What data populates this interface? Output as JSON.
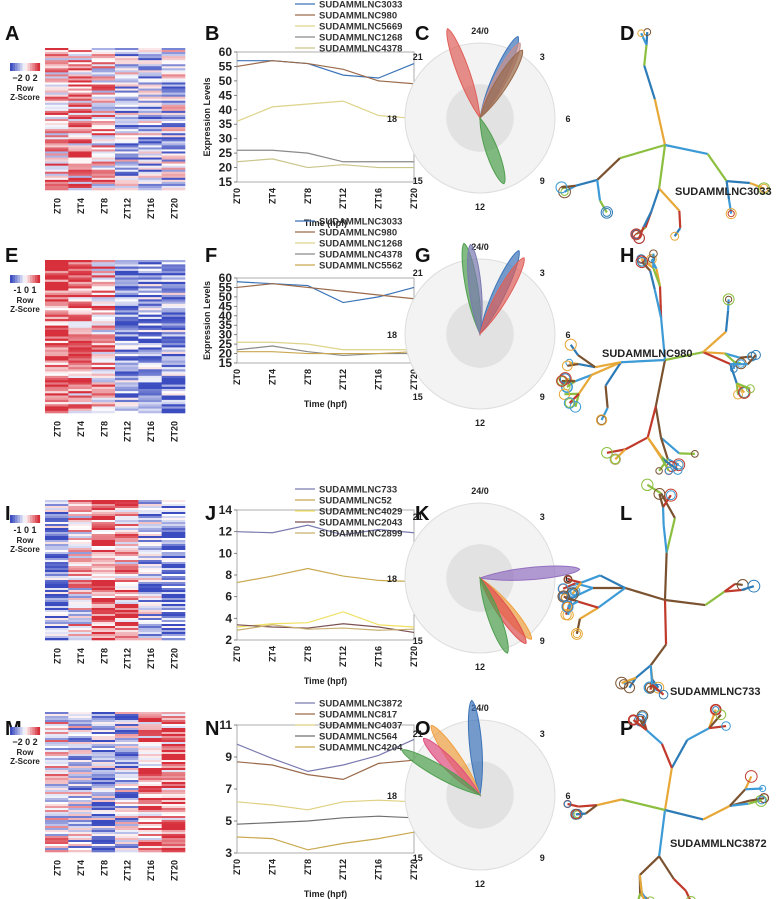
{
  "panels": [
    "A",
    "B",
    "C",
    "D",
    "E",
    "F",
    "G",
    "H",
    "I",
    "J",
    "K",
    "L",
    "M",
    "N",
    "O",
    "P"
  ],
  "heatmaps": [
    {
      "letter": "A",
      "legend": {
        "ticks": "−2 0 2",
        "line1": "Row",
        "line2": "Z-Score"
      },
      "columns": [
        "ZT0",
        "ZT4",
        "ZT8",
        "ZT12",
        "ZT16",
        "ZT20"
      ],
      "column_bias": [
        0.35,
        0.35,
        0.2,
        -0.25,
        -0.3,
        -0.2
      ],
      "seed": 11
    },
    {
      "letter": "E",
      "legend": {
        "ticks": "-1 0 1",
        "line1": "Row",
        "line2": "Z-Score"
      },
      "columns": [
        "ZT0",
        "ZT4",
        "ZT8",
        "ZT12",
        "ZT16",
        "ZT20"
      ],
      "column_bias": [
        0.75,
        0.55,
        0.3,
        -0.6,
        -0.55,
        -0.55
      ],
      "seed": 23
    },
    {
      "letter": "I",
      "legend": {
        "ticks": "-1 0 1",
        "line1": "Row",
        "line2": "Z-Score"
      },
      "columns": [
        "ZT0",
        "ZT4",
        "ZT8",
        "ZT12",
        "ZT16",
        "ZT20"
      ],
      "column_bias": [
        -0.5,
        0.1,
        0.7,
        0.45,
        -0.35,
        -0.6
      ],
      "seed": 37
    },
    {
      "letter": "M",
      "legend": {
        "ticks": "−2 0 2",
        "line1": "Row",
        "line2": "Z-Score"
      },
      "columns": [
        "ZT0",
        "ZT4",
        "ZT8",
        "ZT12",
        "ZT16",
        "ZT20"
      ],
      "column_bias": [
        0.05,
        -0.25,
        -0.45,
        -0.3,
        0.5,
        0.6
      ],
      "seed": 53
    }
  ],
  "chart_data": [
    {
      "panel": "B",
      "type": "line",
      "xlabel": "Time (hpf)",
      "ylabel": "Expression Levels",
      "categories": [
        "ZT0",
        "ZT4",
        "ZT8",
        "ZT12",
        "ZT16",
        "ZT20"
      ],
      "ylim": [
        15,
        60
      ],
      "yticks": [
        15,
        20,
        25,
        30,
        35,
        40,
        45,
        50,
        55,
        60
      ],
      "series": [
        {
          "name": "SUDAMMLNC3033",
          "color": "#3c74b8",
          "values": [
            57,
            57,
            56,
            52,
            51,
            56
          ]
        },
        {
          "name": "SUDAMMLNC980",
          "color": "#9a6a4a",
          "values": [
            55,
            57,
            56,
            54,
            50,
            49
          ]
        },
        {
          "name": "SUDAMMLNC5669",
          "color": "#ddd38a",
          "values": [
            36,
            41,
            42,
            43,
            38,
            37
          ]
        },
        {
          "name": "SUDAMMLNC1268",
          "color": "#8a8a8a",
          "values": [
            26,
            26,
            25,
            22,
            22,
            22
          ]
        },
        {
          "name": "SUDAMMLNC4378",
          "color": "#c9c58a",
          "values": [
            22,
            23,
            20,
            21,
            20,
            20
          ]
        }
      ]
    },
    {
      "panel": "C",
      "type": "radial",
      "clock_labels": [
        "24/0",
        "3",
        "6",
        "9",
        "12",
        "15",
        "18",
        "21"
      ],
      "petals": [
        {
          "angle": -20,
          "length": 95,
          "color": "#e0605a"
        },
        {
          "angle": 25,
          "length": 90,
          "color": "#3c74b8"
        },
        {
          "angle": 28,
          "length": 85,
          "color": "#c89090"
        },
        {
          "angle": 32,
          "length": 80,
          "color": "#9a6a4a"
        },
        {
          "angle": 160,
          "length": 70,
          "color": "#4f9f4f"
        }
      ]
    },
    {
      "panel": "F",
      "type": "line",
      "xlabel": "Time (hpf)",
      "ylabel": "Expression Levels",
      "categories": [
        "ZT0",
        "ZT4",
        "ZT8",
        "ZT12",
        "ZT16",
        "ZT20"
      ],
      "ylim": [
        15,
        60
      ],
      "yticks": [
        15,
        20,
        25,
        30,
        35,
        40,
        45,
        50,
        55,
        60
      ],
      "series": [
        {
          "name": "SUDAMMLNC3033",
          "color": "#3c74b8",
          "values": [
            58,
            57,
            56,
            47,
            50,
            55
          ]
        },
        {
          "name": "SUDAMMLNC980",
          "color": "#9a6a4a",
          "values": [
            55,
            57,
            55,
            53,
            51,
            49
          ]
        },
        {
          "name": "SUDAMMLNC1268",
          "color": "#ddd38a",
          "values": [
            26,
            26,
            25,
            22,
            22,
            22
          ]
        },
        {
          "name": "SUDAMMLNC4378",
          "color": "#8a8a8a",
          "values": [
            22,
            24,
            21,
            19,
            20,
            20
          ]
        },
        {
          "name": "SUDAMMLNC5562",
          "color": "#c9a850",
          "values": [
            21,
            21,
            20,
            20,
            20,
            21
          ]
        }
      ]
    },
    {
      "panel": "G",
      "type": "radial",
      "clock_labels": [
        "24/0",
        "3",
        "6",
        "9",
        "12",
        "15",
        "18",
        "21"
      ],
      "petals": [
        {
          "angle": -10,
          "length": 92,
          "color": "#4f9f4f"
        },
        {
          "angle": -6,
          "length": 90,
          "color": "#7a7ab0"
        },
        {
          "angle": 25,
          "length": 92,
          "color": "#3c74b8"
        },
        {
          "angle": 30,
          "length": 88,
          "color": "#e0605a"
        }
      ]
    },
    {
      "panel": "J",
      "type": "line",
      "xlabel": "Time (hpf)",
      "ylabel": "",
      "categories": [
        "ZT0",
        "ZT4",
        "ZT8",
        "ZT12",
        "ZT16",
        "ZT20"
      ],
      "ylim": [
        2,
        14
      ],
      "yticks": [
        2,
        4,
        6,
        8,
        10,
        12,
        14
      ],
      "series": [
        {
          "name": "SUDAMMLNC733",
          "color": "#7a7ab0",
          "values": [
            12,
            11.9,
            12.6,
            11.7,
            12.2,
            11.9
          ]
        },
        {
          "name": "SUDAMMLNC52",
          "color": "#c9a850",
          "values": [
            7.3,
            7.9,
            8.6,
            7.9,
            7.5,
            7.4
          ]
        },
        {
          "name": "SUDAMMLNC4029",
          "color": "#f0e060",
          "values": [
            3.2,
            3.5,
            3.6,
            4.6,
            3.4,
            3.2
          ]
        },
        {
          "name": "SUDAMMLNC2043",
          "color": "#7a5050",
          "values": [
            3.4,
            3.2,
            3.1,
            3.5,
            3.2,
            2.7
          ]
        },
        {
          "name": "SUDAMMLNC2899",
          "color": "#c9b070",
          "values": [
            2.9,
            3.4,
            3.0,
            3.1,
            2.9,
            3.0
          ]
        }
      ]
    },
    {
      "panel": "K",
      "type": "radial",
      "clock_labels": [
        "24/0",
        "3",
        "6",
        "9",
        "12",
        "15",
        "18",
        "21"
      ],
      "petals": [
        {
          "angle": 85,
          "length": 100,
          "color": "#9370c0"
        },
        {
          "angle": 140,
          "length": 80,
          "color": "#f0a040"
        },
        {
          "angle": 145,
          "length": 80,
          "color": "#e05050"
        },
        {
          "angle": 160,
          "length": 80,
          "color": "#4f9f4f"
        }
      ]
    },
    {
      "panel": "N",
      "type": "line",
      "xlabel": "Time (hpf)",
      "ylabel": "",
      "categories": [
        "ZT0",
        "ZT4",
        "ZT8",
        "ZT12",
        "ZT16",
        "ZT20"
      ],
      "ylim": [
        3,
        11
      ],
      "yticks": [
        3,
        5,
        7,
        9,
        11
      ],
      "series": [
        {
          "name": "SUDAMMLNC3872",
          "color": "#7a7ab0",
          "values": [
            9.8,
            8.9,
            8.1,
            8.5,
            9.1,
            10.1
          ]
        },
        {
          "name": "SUDAMMLNC817",
          "color": "#9a6a4a",
          "values": [
            8.7,
            8.5,
            7.9,
            7.6,
            8.6,
            8.8
          ]
        },
        {
          "name": "SUDAMMLNC4037",
          "color": "#e0d080",
          "values": [
            6.2,
            6.0,
            5.7,
            6.2,
            6.3,
            6.2
          ]
        },
        {
          "name": "SUDAMMLNC564",
          "color": "#707070",
          "values": [
            4.8,
            4.9,
            5.0,
            5.2,
            5.3,
            5.2
          ]
        },
        {
          "name": "SUDAMMLNC4204",
          "color": "#c9a850",
          "values": [
            4.0,
            3.9,
            3.2,
            3.6,
            3.9,
            4.3
          ]
        }
      ]
    },
    {
      "panel": "O",
      "type": "radial",
      "clock_labels": [
        "24/0",
        "3",
        "6",
        "9",
        "12",
        "15",
        "18",
        "21"
      ],
      "petals": [
        {
          "angle": -5,
          "length": 95,
          "color": "#3c74b8"
        },
        {
          "angle": -35,
          "length": 85,
          "color": "#f0a040"
        },
        {
          "angle": -45,
          "length": 80,
          "color": "#e05080"
        },
        {
          "angle": -60,
          "length": 90,
          "color": "#4f9f4f"
        }
      ]
    }
  ],
  "structures": [
    {
      "letter": "D",
      "label": "SUDAMMLNC3033"
    },
    {
      "letter": "H",
      "label": "SUDAMMLNC980"
    },
    {
      "letter": "L",
      "label": "SUDAMMLNC733"
    },
    {
      "letter": "P",
      "label": "SUDAMMLNC3872"
    }
  ],
  "colors": {
    "heat_high": "#d7303c",
    "heat_low": "#3b4cc0",
    "structure_palette": [
      "#3c9ad6",
      "#8cbf3f",
      "#e8a838",
      "#c0392b",
      "#7a5230",
      "#2c7bb6"
    ]
  }
}
